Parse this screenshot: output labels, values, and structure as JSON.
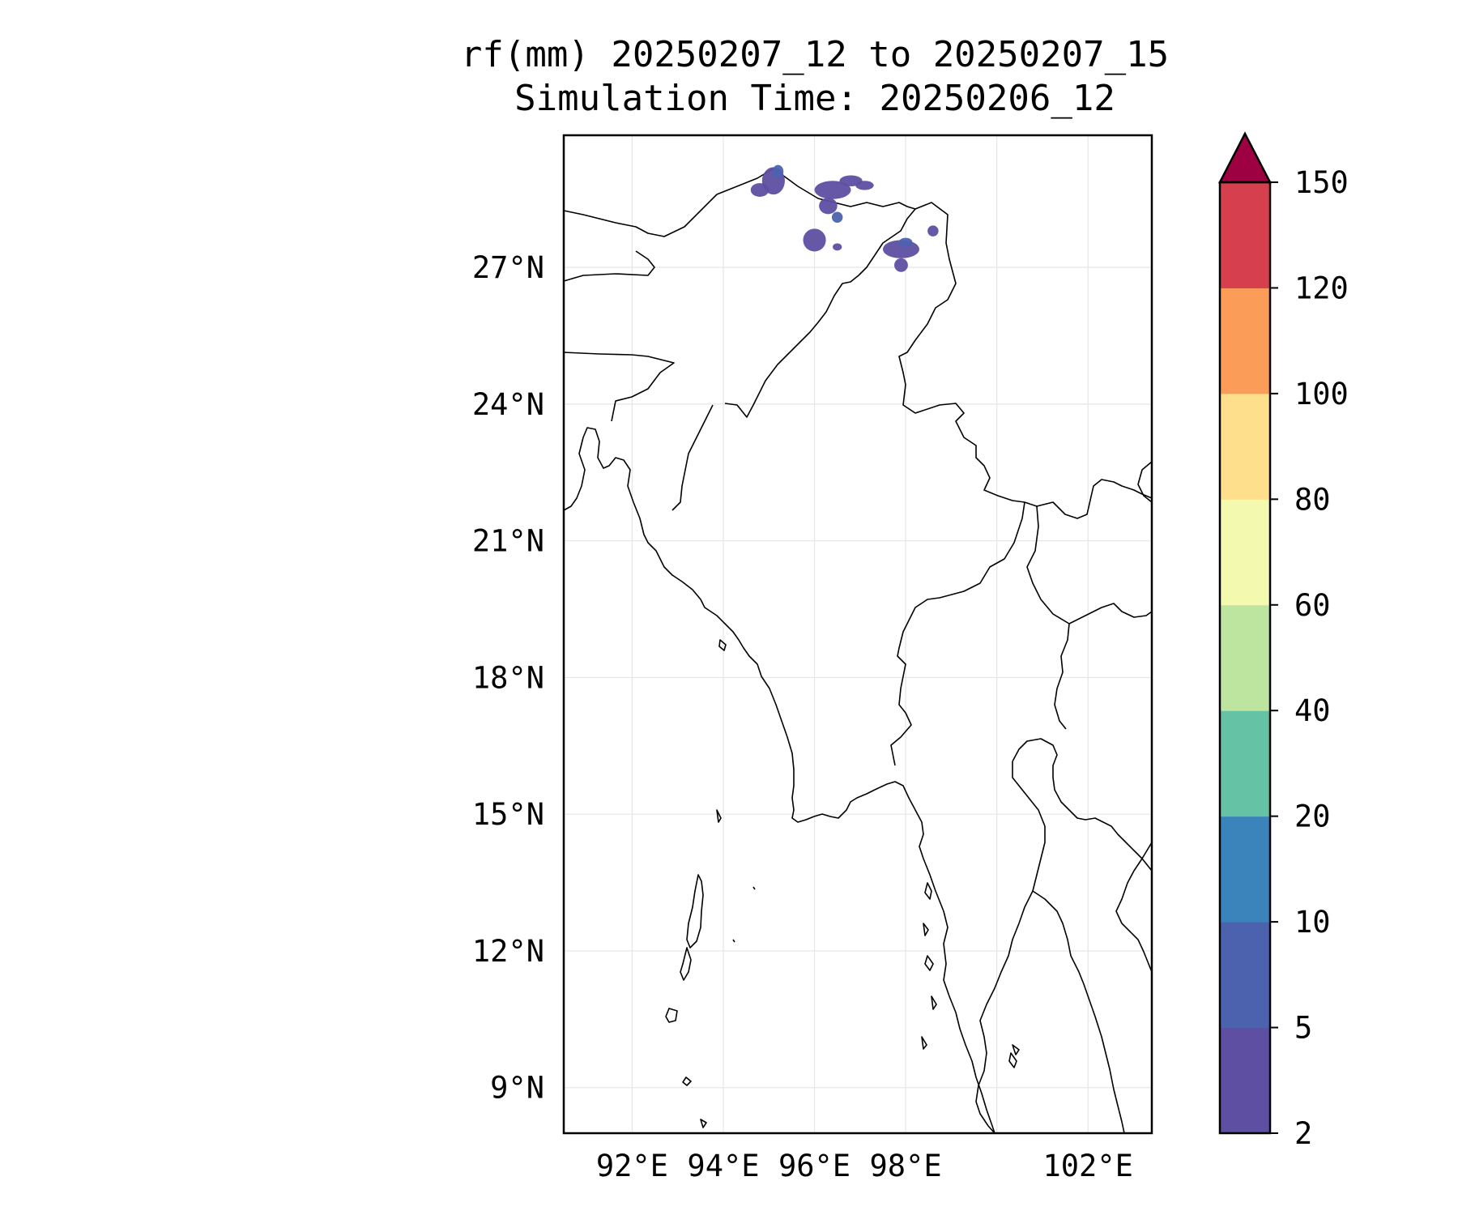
{
  "map": {
    "title_line1": "rf(mm) 20250207_12 to 20250207_15",
    "title_line2": "Simulation Time: 20250206_12",
    "lon_range": [
      90.5,
      103.4
    ],
    "lat_range": [
      8.0,
      29.9
    ],
    "lat_ticks": [
      {
        "value": 27,
        "label": "27°N"
      },
      {
        "value": 24,
        "label": "24°N"
      },
      {
        "value": 21,
        "label": "21°N"
      },
      {
        "value": 18,
        "label": "18°N"
      },
      {
        "value": 15,
        "label": "15°N"
      },
      {
        "value": 12,
        "label": "12°N"
      },
      {
        "value": 9,
        "label": "9°N"
      }
    ],
    "lon_ticks": [
      {
        "value": 92,
        "label": "92°E"
      },
      {
        "value": 94,
        "label": "94°E"
      },
      {
        "value": 96,
        "label": "96°E"
      },
      {
        "value": 98,
        "label": "98°E"
      },
      {
        "value": 102,
        "label": "102°E"
      }
    ],
    "gridlines": true,
    "gridline_lons": [
      92,
      94,
      96,
      98,
      100,
      102
    ],
    "gridline_lats": [
      9,
      12,
      15,
      18,
      21,
      24,
      27
    ]
  },
  "colorbar": {
    "extend": "max",
    "extend_color": "#9e0142",
    "levels": [
      {
        "from": 2,
        "to": 5,
        "color": "#5e4fa2"
      },
      {
        "from": 5,
        "to": 10,
        "color": "#4d62ae"
      },
      {
        "from": 10,
        "to": 20,
        "color": "#3a84bb"
      },
      {
        "from": 20,
        "to": 40,
        "color": "#66c2a5"
      },
      {
        "from": 40,
        "to": 60,
        "color": "#bde5a0"
      },
      {
        "from": 60,
        "to": 80,
        "color": "#f3f9ae"
      },
      {
        "from": 80,
        "to": 100,
        "color": "#fedf8b"
      },
      {
        "from": 100,
        "to": 120,
        "color": "#fb9d59"
      },
      {
        "from": 120,
        "to": 150,
        "color": "#d6404e"
      }
    ],
    "tick_labels": [
      "2",
      "5",
      "10",
      "20",
      "40",
      "60",
      "80",
      "100",
      "120",
      "150"
    ]
  },
  "rainfall_patches": [
    {
      "lon": 95.1,
      "lat": 28.9,
      "rx": 0.25,
      "ry": 0.3,
      "color": "#5e4fa2"
    },
    {
      "lon": 94.8,
      "lat": 28.7,
      "rx": 0.2,
      "ry": 0.15,
      "color": "#5e4fa2"
    },
    {
      "lon": 95.2,
      "lat": 29.1,
      "rx": 0.12,
      "ry": 0.15,
      "color": "#4d62ae"
    },
    {
      "lon": 96.4,
      "lat": 28.7,
      "rx": 0.4,
      "ry": 0.2,
      "color": "#5e4fa2"
    },
    {
      "lon": 96.8,
      "lat": 28.9,
      "rx": 0.25,
      "ry": 0.12,
      "color": "#5e4fa2"
    },
    {
      "lon": 97.1,
      "lat": 28.8,
      "rx": 0.2,
      "ry": 0.1,
      "color": "#5e4fa2"
    },
    {
      "lon": 96.3,
      "lat": 28.35,
      "rx": 0.2,
      "ry": 0.18,
      "color": "#5e4fa2"
    },
    {
      "lon": 96.5,
      "lat": 28.1,
      "rx": 0.12,
      "ry": 0.12,
      "color": "#4d62ae"
    },
    {
      "lon": 96.0,
      "lat": 27.6,
      "rx": 0.25,
      "ry": 0.25,
      "color": "#5e4fa2"
    },
    {
      "lon": 96.5,
      "lat": 27.45,
      "rx": 0.1,
      "ry": 0.08,
      "color": "#5e4fa2"
    },
    {
      "lon": 97.9,
      "lat": 27.4,
      "rx": 0.4,
      "ry": 0.2,
      "color": "#5e4fa2"
    },
    {
      "lon": 98.0,
      "lat": 27.55,
      "rx": 0.15,
      "ry": 0.1,
      "color": "#4d62ae"
    },
    {
      "lon": 97.9,
      "lat": 27.05,
      "rx": 0.15,
      "ry": 0.15,
      "color": "#5e4fa2"
    },
    {
      "lon": 98.6,
      "lat": 27.8,
      "rx": 0.12,
      "ry": 0.12,
      "color": "#5e4fa2"
    }
  ]
}
